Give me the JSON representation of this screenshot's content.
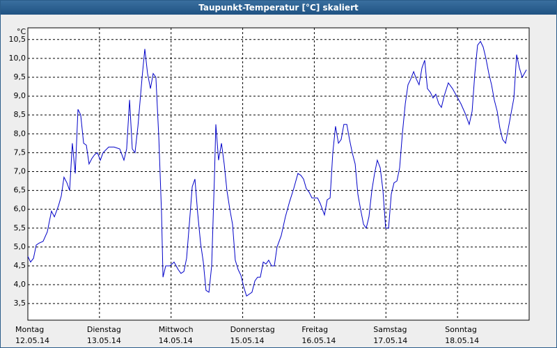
{
  "chart_data": {
    "type": "line",
    "title": "Taupunkt-Temperatur [°C] skaliert",
    "y_unit": "°C",
    "xlim": [
      0,
      168
    ],
    "xticks": [
      {
        "value": 0,
        "label": "Montag",
        "date": "12.05.14"
      },
      {
        "value": 24,
        "label": "Dienstag",
        "date": "13.05.14"
      },
      {
        "value": 48,
        "label": "Mittwoch",
        "date": "14.05.14"
      },
      {
        "value": 72,
        "label": "Donnerstag",
        "date": "15.05.14"
      },
      {
        "value": 96,
        "label": "Freitag",
        "date": "16.05.14"
      },
      {
        "value": 120,
        "label": "Samstag",
        "date": "17.05.14"
      },
      {
        "value": 144,
        "label": "Sonntag",
        "date": "18.05.14"
      }
    ],
    "ylim": [
      3.06,
      10.81
    ],
    "yticks": [
      {
        "value": 3.5,
        "label": "3,5"
      },
      {
        "value": 4,
        "label": "4,0"
      },
      {
        "value": 4.5,
        "label": "4,5"
      },
      {
        "value": 5,
        "label": "5,0"
      },
      {
        "value": 5.5,
        "label": "5,5"
      },
      {
        "value": 6,
        "label": "6,0"
      },
      {
        "value": 6.5,
        "label": "6,5"
      },
      {
        "value": 7,
        "label": "7,0"
      },
      {
        "value": 7.5,
        "label": "7,5"
      },
      {
        "value": 8,
        "label": "8,0"
      },
      {
        "value": 8.5,
        "label": "8,5"
      },
      {
        "value": 9,
        "label": "9,0"
      },
      {
        "value": 9.5,
        "label": "9,5"
      },
      {
        "value": 10,
        "label": "10,0"
      },
      {
        "value": 10.5,
        "label": "10,5"
      }
    ],
    "grid": true,
    "x": [
      0,
      0.9,
      1.9,
      2.8,
      3.7,
      5.1,
      6.5,
      7.9,
      8.9,
      10.3,
      11.2,
      12.1,
      13.1,
      14,
      14.9,
      15.9,
      16.8,
      17.7,
      18.7,
      19.6,
      20.5,
      21.5,
      22.4,
      23.3,
      24.3,
      25.2,
      27.1,
      28.9,
      30.8,
      32.2,
      33.1,
      34.1,
      35,
      35.9,
      36.9,
      38.3,
      39.2,
      40.1,
      41.1,
      42,
      42.9,
      43.9,
      44.8,
      45.3,
      46.2,
      47.6,
      49,
      50.4,
      51.3,
      52.3,
      53.2,
      54.1,
      55.1,
      56,
      56.9,
      57.9,
      58.8,
      59.7,
      60.7,
      61.6,
      62.5,
      63,
      63.9,
      64.9,
      65.8,
      66.7,
      67.7,
      68.6,
      69.5,
      70.5,
      71.4,
      72.3,
      73.3,
      74.2,
      75.1,
      76.1,
      77,
      77.9,
      78.9,
      79.8,
      80.7,
      81.7,
      82.6,
      83.5,
      84.9,
      86.3,
      87.7,
      89.1,
      90.5,
      91.5,
      92.4,
      93.3,
      94.3,
      95.2,
      96.1,
      97.1,
      98,
      99.4,
      100.3,
      101.3,
      102.2,
      103.1,
      104.1,
      105,
      105.9,
      106.9,
      107.8,
      108.7,
      109.7,
      110.6,
      111.5,
      112.5,
      113.4,
      114.3,
      115.3,
      116.2,
      117.1,
      118.1,
      119,
      119.9,
      120.9,
      121.8,
      122.7,
      123.7,
      124.6,
      125.5,
      126.5,
      127.4,
      128.3,
      129.3,
      130.2,
      131.1,
      132.1,
      133,
      133.9,
      134.9,
      135.8,
      136.7,
      137.7,
      138.6,
      139.5,
      140.9,
      142.3,
      143.7,
      145.1,
      146.5,
      147.9,
      148.9,
      149.8,
      150.7,
      151.7,
      152.6,
      153.5,
      154.5,
      155.4,
      156.3,
      157.3,
      158.2,
      159.1,
      160.1,
      161.5,
      162.9,
      163.8,
      164.7,
      165.7,
      167.1
    ],
    "series": [
      {
        "color": "#0000c8",
        "values": [
          4.75,
          4.6,
          4.7,
          5.05,
          5.1,
          5.15,
          5.4,
          5.95,
          5.8,
          6.1,
          6.35,
          6.85,
          6.7,
          6.5,
          7.75,
          6.95,
          8.65,
          8.5,
          7.75,
          7.7,
          7.2,
          7.35,
          7.45,
          7.5,
          7.3,
          7.5,
          7.65,
          7.65,
          7.6,
          7.3,
          7.6,
          8.9,
          7.6,
          7.5,
          8.2,
          9.5,
          10.25,
          9.6,
          9.2,
          9.6,
          9.5,
          7.9,
          5.9,
          4.2,
          4.5,
          4.5,
          4.6,
          4.4,
          4.3,
          4.35,
          4.7,
          5.6,
          6.6,
          6.8,
          5.9,
          5.1,
          4.6,
          3.85,
          3.8,
          4.5,
          6.8,
          8.25,
          7.3,
          7.75,
          7.2,
          6.5,
          6,
          5.6,
          4.65,
          4.4,
          4.25,
          3.95,
          3.7,
          3.75,
          3.8,
          4.1,
          4.2,
          4.2,
          4.6,
          4.55,
          4.65,
          4.5,
          4.5,
          5,
          5.3,
          5.8,
          6.2,
          6.55,
          6.95,
          6.9,
          6.8,
          6.55,
          6.45,
          6.3,
          6.3,
          6.3,
          6.15,
          5.85,
          6.25,
          6.3,
          7.5,
          8.2,
          7.75,
          7.85,
          8.25,
          8.25,
          7.85,
          7.5,
          7.2,
          6.4,
          6,
          5.6,
          5.5,
          5.8,
          6.5,
          6.95,
          7.3,
          7.1,
          6.5,
          5.5,
          5.5,
          6.4,
          6.7,
          6.75,
          7.1,
          8,
          8.8,
          9.3,
          9.45,
          9.65,
          9.45,
          9.3,
          9.75,
          9.95,
          9.2,
          9.1,
          8.95,
          9.05,
          8.8,
          8.7,
          9,
          9.35,
          9.2,
          9,
          8.8,
          8.55,
          8.25,
          8.6,
          9.6,
          10.35,
          10.45,
          10.3,
          10,
          9.6,
          9.3,
          8.9,
          8.6,
          8.15,
          7.85,
          7.75,
          8.35,
          8.95,
          10.1,
          9.75,
          9.5,
          9.7
        ]
      }
    ]
  }
}
